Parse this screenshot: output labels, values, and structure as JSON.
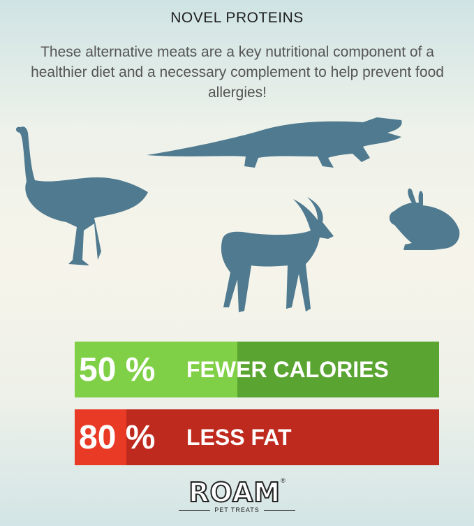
{
  "title": "NOVEL PROTEINS",
  "subtitle": "These alternative meats are a key nutritional component of a healthier diet and a necessary complement to help prevent food allergies!",
  "animals": [
    "ostrich-icon",
    "crocodile-icon",
    "gazelle-icon",
    "rabbit-icon"
  ],
  "animal_color": "#4f7a90",
  "stats": [
    {
      "percent": "50 %",
      "label": "FEWER CALORIES",
      "value": 50,
      "color": "#5aa532",
      "highlight": "#7fd046"
    },
    {
      "percent": "80 %",
      "label": "LESS FAT",
      "value": 80,
      "color": "#bf2a1e",
      "highlight": "#e93a26"
    }
  ],
  "logo": {
    "name": "ROAM",
    "reg": "®",
    "tagline": "PET TREATS"
  }
}
